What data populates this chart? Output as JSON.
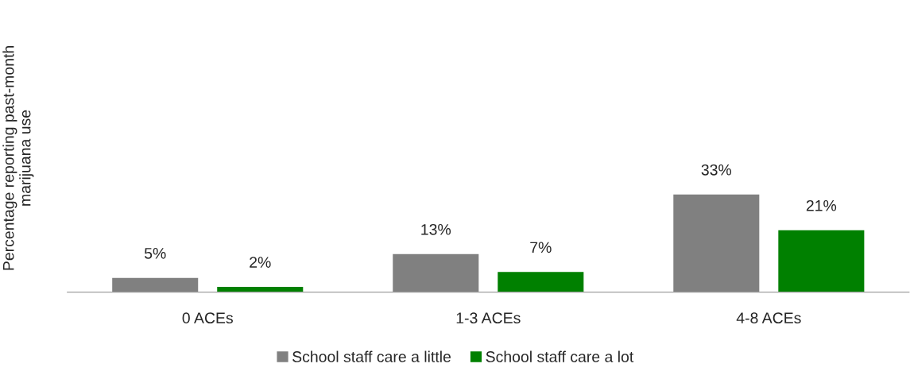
{
  "chart_data": {
    "type": "bar",
    "ylabel": "Percentage reporting past-month\nmarijuana use",
    "categories": [
      "0 ACEs",
      "1-3 ACEs",
      "4-8 ACEs"
    ],
    "series": [
      {
        "name": "School staff care a little",
        "color": "#808080",
        "values": [
          5,
          13,
          33
        ],
        "value_labels": [
          "5%",
          "13%",
          "33%"
        ]
      },
      {
        "name": "School staff care a lot",
        "color": "#008000",
        "values": [
          2,
          7,
          21
        ],
        "value_labels": [
          "2%",
          "7%",
          "21%"
        ]
      }
    ],
    "grid": false,
    "legend": "bottom"
  }
}
